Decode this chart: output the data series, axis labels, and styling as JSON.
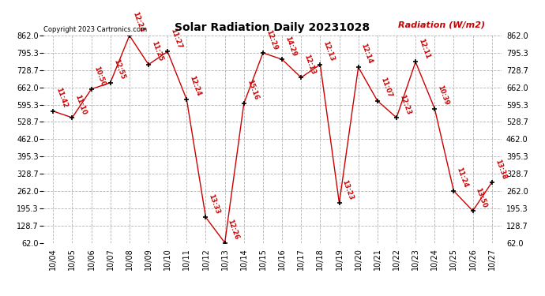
{
  "title": "Solar Radiation Daily 20231028",
  "ylabel": "Radiation (W/m2)",
  "copyright": "Copyright 2023 Cartronics.com",
  "background_color": "#ffffff",
  "grid_color": "#aaaaaa",
  "line_color": "#cc0000",
  "marker_color": "#000000",
  "label_color": "#cc0000",
  "ylim": [
    62.0,
    862.0
  ],
  "yticks": [
    62.0,
    128.7,
    195.3,
    262.0,
    328.7,
    395.3,
    462.0,
    528.7,
    595.3,
    662.0,
    728.7,
    795.3,
    862.0
  ],
  "dates": [
    "10/04",
    "10/05",
    "10/06",
    "10/07",
    "10/08",
    "10/09",
    "10/10",
    "10/11",
    "10/12",
    "10/13",
    "10/14",
    "10/15",
    "10/16",
    "10/17",
    "10/18",
    "10/19",
    "10/20",
    "10/21",
    "10/22",
    "10/23",
    "10/24",
    "10/25",
    "10/26",
    "10/27"
  ],
  "values": [
    570,
    545,
    655,
    680,
    862,
    750,
    800,
    615,
    160,
    62,
    600,
    795,
    770,
    700,
    750,
    215,
    740,
    610,
    545,
    760,
    580,
    262,
    185,
    295
  ],
  "time_labels": [
    "11:42",
    "11:10",
    "10:50",
    "12:55",
    "12:24",
    "11:25",
    "11:27",
    "12:24",
    "13:33",
    "12:26",
    "15:16",
    "12:29",
    "14:29",
    "12:13",
    "12:13",
    "13:23",
    "12:14",
    "11:07",
    "12:23",
    "12:11",
    "10:39",
    "11:24",
    "13:50",
    "13:38"
  ]
}
